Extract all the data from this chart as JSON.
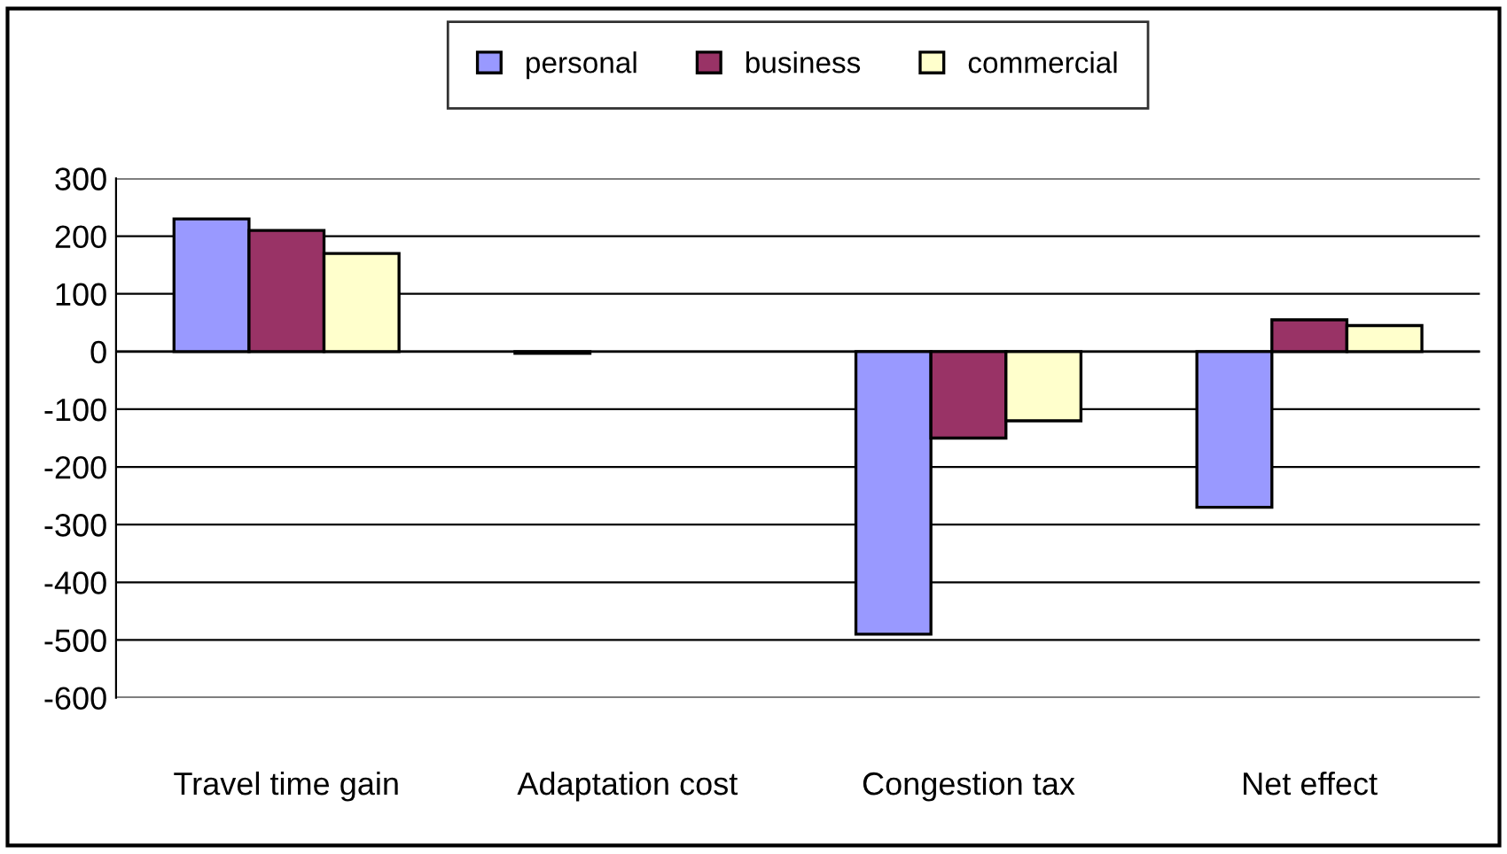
{
  "chart_data": {
    "type": "bar",
    "categories": [
      "Travel time gain",
      "Adaptation cost",
      "Congestion tax",
      "Net effect"
    ],
    "series": [
      {
        "name": "personal",
        "color": "#9999ff",
        "values": [
          230,
          -3,
          -490,
          -270
        ]
      },
      {
        "name": "business",
        "color": "#993366",
        "values": [
          210,
          null,
          -150,
          55
        ]
      },
      {
        "name": "commercial",
        "color": "#ffffcc",
        "values": [
          170,
          null,
          -120,
          45
        ]
      }
    ],
    "ylim": [
      -600,
      300
    ],
    "yticks": [
      -600,
      -500,
      -400,
      -300,
      -200,
      -100,
      0,
      100,
      200,
      300
    ],
    "grid": "y",
    "legend": "top"
  }
}
